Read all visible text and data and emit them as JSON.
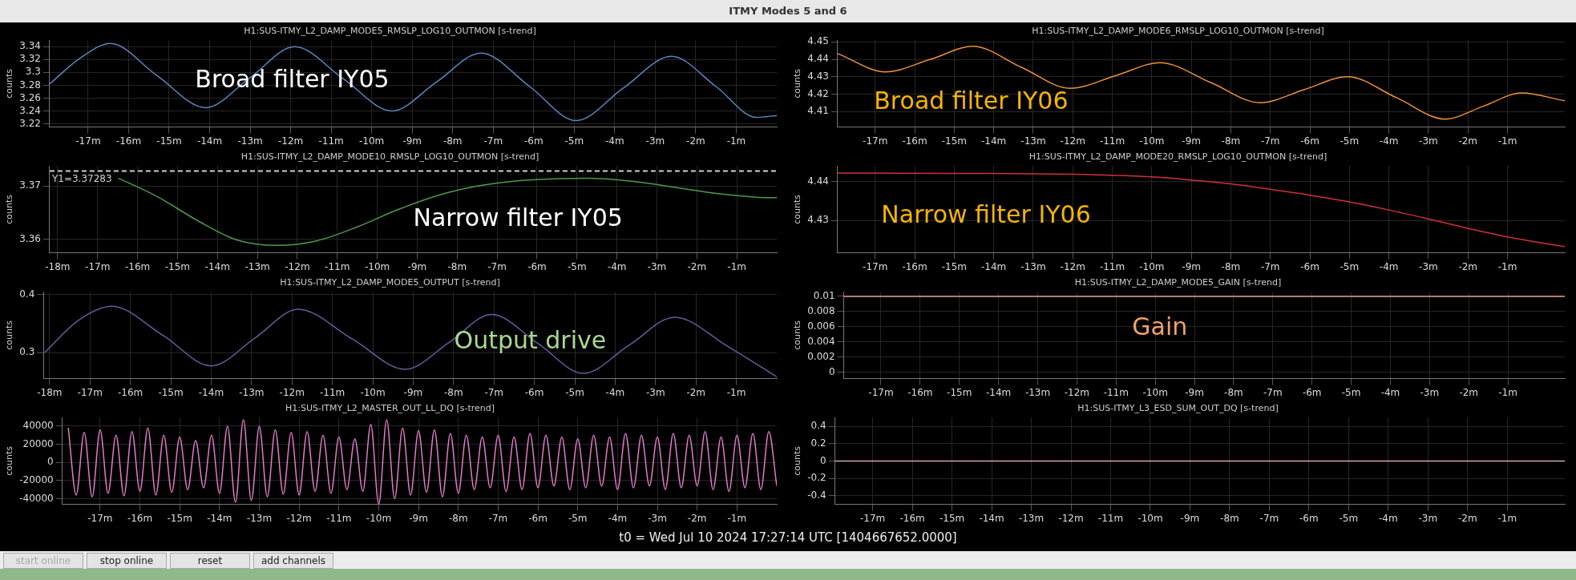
{
  "chart_data": [
    {
      "type": "line",
      "title": "H1:SUS-ITMY_L2_DAMP_MODE5_RMSLP_LOG10_OUTMON [s-trend]",
      "ylabel": "counts",
      "annotations": [
        "Broad filter IY05"
      ],
      "grid": true,
      "x": [
        -17.95,
        -17.2,
        -16.45,
        -15.3,
        -14.1,
        -13.0,
        -11.9,
        -10.7,
        -9.5,
        -8.4,
        -7.3,
        -6.1,
        -4.95,
        -3.8,
        -2.6,
        -1.5,
        -0.5,
        0
      ],
      "series": [
        {
          "color": "#5b86c0",
          "values": [
            3.282,
            3.322,
            3.345,
            3.295,
            3.245,
            3.292,
            3.34,
            3.29,
            3.24,
            3.285,
            3.33,
            3.278,
            3.225,
            3.275,
            3.325,
            3.278,
            3.23,
            3.233
          ]
        }
      ],
      "xlim": [
        -17.95,
        0
      ],
      "ylim": [
        3.215,
        3.35
      ],
      "yticks": [
        3.22,
        3.24,
        3.26,
        3.28,
        3.3,
        3.32,
        3.34
      ],
      "xticks": [
        {
          "value": -17,
          "label": "-17m"
        },
        {
          "value": -16,
          "label": "-16m"
        },
        {
          "value": -15,
          "label": "-15m"
        },
        {
          "value": -14,
          "label": "-14m"
        },
        {
          "value": -13,
          "label": "-13m"
        },
        {
          "value": -12,
          "label": "-12m"
        },
        {
          "value": -11,
          "label": "-11m"
        },
        {
          "value": -10,
          "label": "-10m"
        },
        {
          "value": -9,
          "label": "-9m"
        },
        {
          "value": -8,
          "label": "-8m"
        },
        {
          "value": -7,
          "label": "-7m"
        },
        {
          "value": -6,
          "label": "-6m"
        },
        {
          "value": -5,
          "label": "-5m"
        },
        {
          "value": -4,
          "label": "-4m"
        },
        {
          "value": -3,
          "label": "-3m"
        },
        {
          "value": -2,
          "label": "-2m"
        },
        {
          "value": -1,
          "label": "-1m"
        }
      ]
    },
    {
      "type": "line",
      "title": "H1:SUS-ITMY_L2_DAMP_MODE6_RMSLP_LOG10_OUTMON [s-trend]",
      "ylabel": "counts",
      "annotations": [
        "Broad filter IY06"
      ],
      "grid": true,
      "x": [
        -17.95,
        -16.74,
        -15.6,
        -14.53,
        -13.3,
        -12.07,
        -10.9,
        -9.79,
        -8.5,
        -7.26,
        -6.15,
        -5.05,
        -3.8,
        -2.58,
        -1.6,
        -0.65,
        0.45
      ],
      "series": [
        {
          "color": "#f0913a",
          "values": [
            4.4433,
            4.4328,
            4.44,
            4.4475,
            4.4354,
            4.4233,
            4.4307,
            4.4381,
            4.4265,
            4.415,
            4.4225,
            4.43,
            4.4178,
            4.4056,
            4.4131,
            4.4206,
            4.4161
          ]
        }
      ],
      "xlim": [
        -17.95,
        0.45
      ],
      "ylim": [
        4.401,
        4.451
      ],
      "yticks": [
        4.41,
        4.42,
        4.43,
        4.44,
        4.45
      ],
      "xticks": [
        {
          "value": -17,
          "label": "-17m"
        },
        {
          "value": -16,
          "label": "-16m"
        },
        {
          "value": -15,
          "label": "-15m"
        },
        {
          "value": -14,
          "label": "-14m"
        },
        {
          "value": -13,
          "label": "-13m"
        },
        {
          "value": -12,
          "label": "-12m"
        },
        {
          "value": -11,
          "label": "-11m"
        },
        {
          "value": -10,
          "label": "-10m"
        },
        {
          "value": -9,
          "label": "-9m"
        },
        {
          "value": -8,
          "label": "-8m"
        },
        {
          "value": -7,
          "label": "-7m"
        },
        {
          "value": -6,
          "label": "-6m"
        },
        {
          "value": -5,
          "label": "-5m"
        },
        {
          "value": -4,
          "label": "-4m"
        },
        {
          "value": -3,
          "label": "-3m"
        },
        {
          "value": -2,
          "label": "-2m"
        },
        {
          "value": -1,
          "label": "-1m"
        }
      ]
    },
    {
      "type": "line",
      "title": "H1:SUS-ITMY_L2_DAMP_MODE10_RMSLP_LOG10_OUTMON [s-trend]",
      "ylabel": "counts",
      "annotations": [
        "Narrow filter IY05"
      ],
      "grid": true,
      "ref_lines": [
        {
          "axis": "y",
          "value": 3.37283,
          "label": "Y1=3.37283",
          "color": "#d0d0d0",
          "line_style": "dashed"
        }
      ],
      "x": [
        -16.48,
        -15.5,
        -14.5,
        -13.5,
        -12.5,
        -11.5,
        -10.5,
        -9.5,
        -8.5,
        -7.5,
        -6.5,
        -5.5,
        -4.7,
        -3.5,
        -2.5,
        -1.5,
        -0.5,
        0
      ],
      "series": [
        {
          "color": "#4f9a4a",
          "values": [
            3.3715,
            3.368,
            3.3635,
            3.3598,
            3.3588,
            3.3597,
            3.3623,
            3.3655,
            3.3682,
            3.37,
            3.371,
            3.3714,
            3.3715,
            3.3708,
            3.3697,
            3.3686,
            3.3679,
            3.3678
          ]
        }
      ],
      "xlim": [
        -18.2,
        0
      ],
      "ylim": [
        3.3574,
        3.3738
      ],
      "yticks": [
        3.36,
        3.37
      ],
      "xticks": [
        {
          "value": -18,
          "label": "-18m"
        },
        {
          "value": -17,
          "label": "-17m"
        },
        {
          "value": -16,
          "label": "-16m"
        },
        {
          "value": -15,
          "label": "-15m"
        },
        {
          "value": -14,
          "label": "-14m"
        },
        {
          "value": -13,
          "label": "-13m"
        },
        {
          "value": -12,
          "label": "-12m"
        },
        {
          "value": -11,
          "label": "-11m"
        },
        {
          "value": -10,
          "label": "-10m"
        },
        {
          "value": -9,
          "label": "-9m"
        },
        {
          "value": -8,
          "label": "-8m"
        },
        {
          "value": -7,
          "label": "-7m"
        },
        {
          "value": -6,
          "label": "-6m"
        },
        {
          "value": -5,
          "label": "-5m"
        },
        {
          "value": -4,
          "label": "-4m"
        },
        {
          "value": -3,
          "label": "-3m"
        },
        {
          "value": -2,
          "label": "-2m"
        },
        {
          "value": -1,
          "label": "-1m"
        }
      ]
    },
    {
      "type": "line",
      "title": "H1:SUS-ITMY_L2_DAMP_MODE20_RMSLP_LOG10_OUTMON [s-trend]",
      "ylabel": "counts",
      "annotations": [
        "Narrow filter IY06"
      ],
      "grid": true,
      "x": [
        -17.95,
        -15,
        -12,
        -10,
        -9,
        -8,
        -7,
        -6,
        -5,
        -4,
        -3,
        -2,
        -1,
        0.45
      ],
      "series": [
        {
          "color": "#d0303a",
          "values": [
            4.4422,
            4.4421,
            4.4419,
            4.4412,
            4.4404,
            4.4394,
            4.438,
            4.4365,
            4.4348,
            4.4327,
            4.4304,
            4.428,
            4.4258,
            4.4233
          ]
        }
      ],
      "xlim": [
        -17.95,
        0.45
      ],
      "ylim": [
        4.4217,
        4.444
      ],
      "yticks": [
        4.43,
        4.44
      ],
      "xticks": [
        {
          "value": -17,
          "label": "-17m"
        },
        {
          "value": -16,
          "label": "-16m"
        },
        {
          "value": -15,
          "label": "-15m"
        },
        {
          "value": -14,
          "label": "-14m"
        },
        {
          "value": -13,
          "label": "-13m"
        },
        {
          "value": -12,
          "label": "-12m"
        },
        {
          "value": -11,
          "label": "-11m"
        },
        {
          "value": -10,
          "label": "-10m"
        },
        {
          "value": -9,
          "label": "-9m"
        },
        {
          "value": -8,
          "label": "-8m"
        },
        {
          "value": -7,
          "label": "-7m"
        },
        {
          "value": -6,
          "label": "-6m"
        },
        {
          "value": -5,
          "label": "-5m"
        },
        {
          "value": -4,
          "label": "-4m"
        },
        {
          "value": -3,
          "label": "-3m"
        },
        {
          "value": -2,
          "label": "-2m"
        },
        {
          "value": -1,
          "label": "-1m"
        }
      ]
    },
    {
      "type": "line",
      "title": "H1:SUS-ITMY_L2_DAMP_MODE5_OUTPUT [s-trend]",
      "ylabel": "counts",
      "annotations": [
        "Output drive"
      ],
      "grid": true,
      "x": [
        -18.12,
        -17.3,
        -16.46,
        -15.2,
        -14.0,
        -12.9,
        -11.85,
        -10.5,
        -9.2,
        -8.1,
        -7.06,
        -5.9,
        -4.79,
        -3.65,
        -2.53,
        -1.2,
        0
      ],
      "series": [
        {
          "color": "#6a5a9c",
          "values": [
            0.3,
            0.355,
            0.38,
            0.33,
            0.277,
            0.326,
            0.375,
            0.323,
            0.271,
            0.318,
            0.366,
            0.315,
            0.264,
            0.313,
            0.361,
            0.31,
            0.258
          ]
        }
      ],
      "xlim": [
        -18.15,
        0
      ],
      "ylim": [
        0.255,
        0.405
      ],
      "yticks": [
        0.3,
        0.4
      ],
      "xticks": [
        {
          "value": -18,
          "label": "-18m"
        },
        {
          "value": -17,
          "label": "-17m"
        },
        {
          "value": -16,
          "label": "-16m"
        },
        {
          "value": -15,
          "label": "-15m"
        },
        {
          "value": -14,
          "label": "-14m"
        },
        {
          "value": -13,
          "label": "-13m"
        },
        {
          "value": -12,
          "label": "-12m"
        },
        {
          "value": -11,
          "label": "-11m"
        },
        {
          "value": -10,
          "label": "-10m"
        },
        {
          "value": -9,
          "label": "-9m"
        },
        {
          "value": -8,
          "label": "-8m"
        },
        {
          "value": -7,
          "label": "-7m"
        },
        {
          "value": -6,
          "label": "-6m"
        },
        {
          "value": -5,
          "label": "-5m"
        },
        {
          "value": -4,
          "label": "-4m"
        },
        {
          "value": -3,
          "label": "-3m"
        },
        {
          "value": -2,
          "label": "-2m"
        },
        {
          "value": -1,
          "label": "-1m"
        }
      ]
    },
    {
      "type": "line",
      "title": "H1:SUS-ITMY_L2_DAMP_MODE5_GAIN [s-trend]",
      "ylabel": "counts",
      "annotations": [
        "Gain"
      ],
      "grid": true,
      "x": [
        -17.95,
        0.45
      ],
      "series": [
        {
          "color": "#e8a08a",
          "values": [
            0.01,
            0.01
          ]
        }
      ],
      "xlim": [
        -17.95,
        0.45
      ],
      "ylim": [
        -0.0008,
        0.0106
      ],
      "yticks": [
        0,
        0.002,
        0.004,
        0.006,
        0.008,
        0.01
      ],
      "xticks": [
        {
          "value": -17,
          "label": "-17m"
        },
        {
          "value": -16,
          "label": "-16m"
        },
        {
          "value": -15,
          "label": "-15m"
        },
        {
          "value": -14,
          "label": "-14m"
        },
        {
          "value": -13,
          "label": "-13m"
        },
        {
          "value": -12,
          "label": "-12m"
        },
        {
          "value": -11,
          "label": "-11m"
        },
        {
          "value": -10,
          "label": "-10m"
        },
        {
          "value": -9,
          "label": "-9m"
        },
        {
          "value": -8,
          "label": "-8m"
        },
        {
          "value": -7,
          "label": "-7m"
        },
        {
          "value": -6,
          "label": "-6m"
        },
        {
          "value": -5,
          "label": "-5m"
        },
        {
          "value": -4,
          "label": "-4m"
        },
        {
          "value": -3,
          "label": "-3m"
        },
        {
          "value": -2,
          "label": "-2m"
        },
        {
          "value": -1,
          "label": "-1m"
        }
      ]
    },
    {
      "type": "line",
      "title": "H1:SUS-ITMY_L2_MASTER_OUT_LL_DQ [s-trend]",
      "ylabel": "counts",
      "grid": true,
      "x": [
        -17.8,
        -17.6,
        -17.4,
        -17.2,
        -17.0,
        -16.8,
        -16.6,
        -16.4,
        -16.2,
        -16.0,
        -15.8,
        -15.6,
        -15.4,
        -15.2,
        -15.0,
        -14.8,
        -14.6,
        -14.4,
        -14.2,
        -14.0,
        -13.8,
        -13.6,
        -13.4,
        -13.2,
        -13.0,
        -12.8,
        -12.6,
        -12.4,
        -12.2,
        -12.0,
        -11.8,
        -11.6,
        -11.4,
        -11.2,
        -11.0,
        -10.8,
        -10.6,
        -10.4,
        -10.2,
        -10.0,
        -9.8,
        -9.6,
        -9.4,
        -9.2,
        -9.0,
        -8.8,
        -8.6,
        -8.4,
        -8.2,
        -8.0,
        -7.8,
        -7.6,
        -7.4,
        -7.2,
        -7.0,
        -6.8,
        -6.6,
        -6.4,
        -6.2,
        -6.0,
        -5.8,
        -5.6,
        -5.4,
        -5.2,
        -5.0,
        -4.8,
        -4.6,
        -4.4,
        -4.2,
        -4.0,
        -3.8,
        -3.6,
        -3.4,
        -3.2,
        -3.0,
        -2.8,
        -2.6,
        -2.4,
        -2.2,
        -2.0,
        -1.8,
        -1.6,
        -1.4,
        -1.2,
        -1.0,
        -0.8,
        -0.6,
        -0.4,
        -0.2,
        0
      ],
      "series": [
        {
          "color": "#e07cc8",
          "values": [
            38000,
            -36000,
            33000,
            -38000,
            36000,
            -34000,
            30000,
            -37000,
            34000,
            -32000,
            38000,
            -36000,
            30000,
            -33000,
            28000,
            -30000,
            24000,
            -28000,
            30000,
            -34000,
            40000,
            -44000,
            47000,
            -42000,
            40000,
            -38000,
            36000,
            -35000,
            33000,
            -36000,
            34000,
            -32000,
            30000,
            -34000,
            28000,
            -30000,
            26000,
            -32000,
            42000,
            -46000,
            47000,
            -40000,
            38000,
            -36000,
            35000,
            -33000,
            36000,
            -38000,
            32000,
            -34000,
            30000,
            -30000,
            28000,
            -28000,
            30000,
            -32000,
            28000,
            -30000,
            32000,
            -28000,
            30000,
            -26000,
            28000,
            -30000,
            26000,
            -28000,
            30000,
            -26000,
            28000,
            -30000,
            32000,
            -28000,
            30000,
            -26000,
            28000,
            -30000,
            32000,
            -28000,
            30000,
            -26000,
            34000,
            -30000,
            28000,
            -32000,
            30000,
            -28000,
            32000,
            -30000,
            34000,
            -26000
          ]
        }
      ],
      "xlim": [
        -17.95,
        0
      ],
      "ylim": [
        -46300,
        49500
      ],
      "yticks": [
        -40000,
        -20000,
        0,
        20000,
        40000
      ],
      "xticks": [
        {
          "value": -17,
          "label": "-17m"
        },
        {
          "value": -16,
          "label": "-16m"
        },
        {
          "value": -15,
          "label": "-15m"
        },
        {
          "value": -14,
          "label": "-14m"
        },
        {
          "value": -13,
          "label": "-13m"
        },
        {
          "value": -12,
          "label": "-12m"
        },
        {
          "value": -11,
          "label": "-11m"
        },
        {
          "value": -10,
          "label": "-10m"
        },
        {
          "value": -9,
          "label": "-9m"
        },
        {
          "value": -8,
          "label": "-8m"
        },
        {
          "value": -7,
          "label": "-7m"
        },
        {
          "value": -6,
          "label": "-6m"
        },
        {
          "value": -5,
          "label": "-5m"
        },
        {
          "value": -4,
          "label": "-4m"
        },
        {
          "value": -3,
          "label": "-3m"
        },
        {
          "value": -2,
          "label": "-2m"
        },
        {
          "value": -1,
          "label": "-1m"
        }
      ]
    },
    {
      "type": "line",
      "title": "H1:SUS-ITMY_L3_ESD_SUM_OUT_DQ [s-trend]",
      "ylabel": "counts",
      "grid": true,
      "x": [
        -17.95,
        0.45
      ],
      "series": [
        {
          "color": "#d8a0b0",
          "values": [
            0,
            0
          ]
        }
      ],
      "xlim": [
        -17.95,
        0.45
      ],
      "ylim": [
        -0.5,
        0.5
      ],
      "yticks": [
        -0.4,
        -0.2,
        0,
        0.2,
        0.4
      ],
      "xticks": [
        {
          "value": -17,
          "label": "-17m"
        },
        {
          "value": -16,
          "label": "-16m"
        },
        {
          "value": -15,
          "label": "-15m"
        },
        {
          "value": -14,
          "label": "-14m"
        },
        {
          "value": -13,
          "label": "-13m"
        },
        {
          "value": -12,
          "label": "-12m"
        },
        {
          "value": -11,
          "label": "-11m"
        },
        {
          "value": -10,
          "label": "-10m"
        },
        {
          "value": -9,
          "label": "-9m"
        },
        {
          "value": -8,
          "label": "-8m"
        },
        {
          "value": -7,
          "label": "-7m"
        },
        {
          "value": -6,
          "label": "-6m"
        },
        {
          "value": -5,
          "label": "-5m"
        },
        {
          "value": -4,
          "label": "-4m"
        },
        {
          "value": -3,
          "label": "-3m"
        },
        {
          "value": -2,
          "label": "-2m"
        },
        {
          "value": -1,
          "label": "-1m"
        }
      ]
    },
    {
      "type": "other",
      "title": "ITMY Modes 5 and 6",
      "annotations": [
        "t0 = Wed Jul 10 2024 17:27:14 UTC [1404667652.0000]",
        "start online",
        "stop online",
        "reset",
        "add channels"
      ]
    }
  ]
}
